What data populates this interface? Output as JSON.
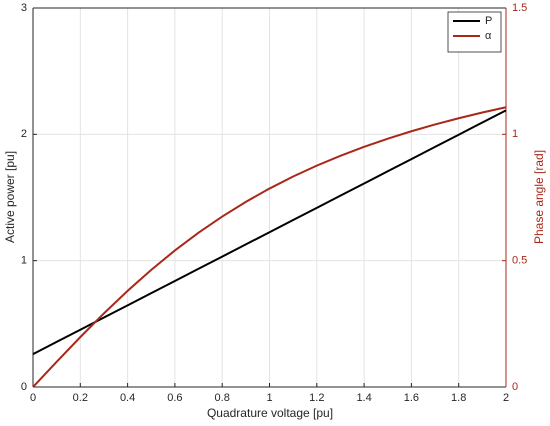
{
  "chart_data": {
    "type": "line",
    "x_label": "Quadrature voltage [pu]",
    "y_label": "Active power [pu]",
    "y2_label": "Phase angle [rad]",
    "x": [
      0,
      0.1,
      0.2,
      0.3,
      0.4,
      0.5,
      0.6,
      0.7,
      0.8,
      0.9,
      1,
      1.1,
      1.2,
      1.3,
      1.4,
      1.5,
      1.6,
      1.7,
      1.8,
      1.9,
      2
    ],
    "series": [
      {
        "name": "P",
        "color": "#000000",
        "values": [
          0.26,
          0.357,
          0.453,
          0.55,
          0.646,
          0.743,
          0.839,
          0.936,
          1.032,
          1.129,
          1.225,
          1.322,
          1.418,
          1.515,
          1.611,
          1.708,
          1.804,
          1.901,
          1.997,
          2.094,
          2.19
        ]
      },
      {
        "name": "α",
        "color": "#a8281a",
        "axis": "y2",
        "values": [
          0,
          0.0997,
          0.1974,
          0.2915,
          0.3805,
          0.4636,
          0.5404,
          0.6107,
          0.6747,
          0.7328,
          0.7854,
          0.833,
          0.8761,
          0.9151,
          0.9505,
          0.9828,
          1.0122,
          1.0391,
          1.0637,
          1.0863,
          1.1071
        ]
      }
    ],
    "xlim": [
      0,
      2
    ],
    "xticks": [
      0,
      0.2,
      0.4,
      0.6,
      0.8,
      1,
      1.2,
      1.4,
      1.6,
      1.8,
      2
    ],
    "ylim": [
      0,
      3
    ],
    "yticks": [
      0,
      1,
      2,
      3
    ],
    "y2lim": [
      0,
      1.5
    ],
    "y2ticks": [
      0,
      0.5,
      1,
      1.5
    ],
    "y2_color": "#a8281a",
    "grid": true,
    "legend": "upper-right"
  }
}
